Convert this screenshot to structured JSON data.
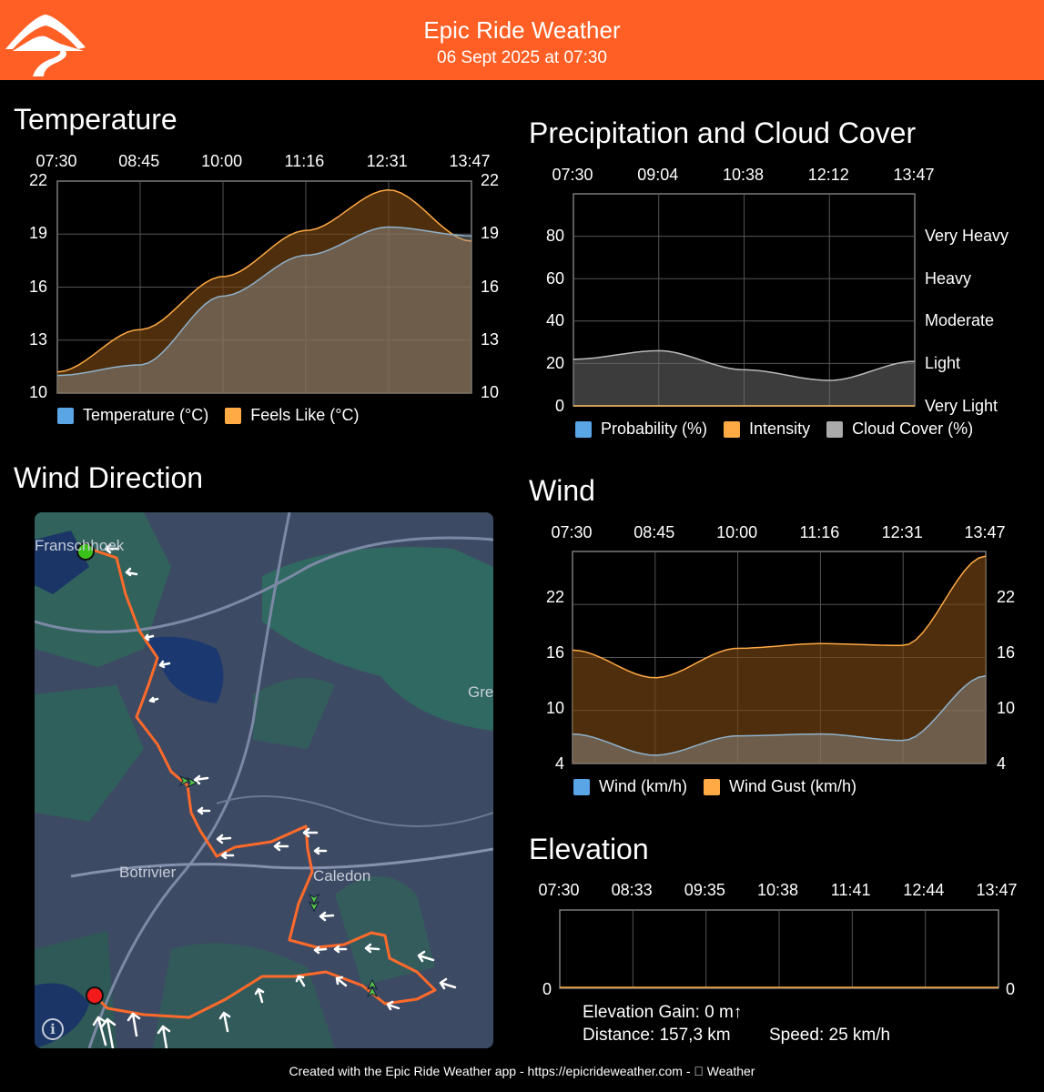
{
  "header": {
    "title": "Epic Ride Weather",
    "subtitle": "06 Sept 2025 at 07:30",
    "logo_icon": "mountain-road-logo-icon",
    "accent": "#ff5f24"
  },
  "temperature": {
    "title": "Temperature",
    "time_ticks": [
      "07:30",
      "08:45",
      "10:00",
      "11:16",
      "12:31",
      "13:47"
    ],
    "y_ticks": [
      "22",
      "19",
      "16",
      "13",
      "10"
    ],
    "legend": [
      {
        "label": "Temperature (°C)",
        "color": "#5aa5e6"
      },
      {
        "label": "Feels Like (°C)",
        "color": "#ffaa44"
      }
    ]
  },
  "precipitation": {
    "title": "Precipitation and Cloud Cover",
    "time_ticks": [
      "07:30",
      "09:04",
      "10:38",
      "12:12",
      "13:47"
    ],
    "y_ticks": [
      "80",
      "60",
      "40",
      "20",
      "0"
    ],
    "intensity_ticks": [
      "Very Heavy",
      "Heavy",
      "Moderate",
      "Light",
      "Very Light"
    ],
    "legend": [
      {
        "label": "Probability (%)",
        "color": "#5aa5e6"
      },
      {
        "label": "Intensity",
        "color": "#ffaa44"
      },
      {
        "label": "Cloud Cover (%)",
        "color": "#aaaaaa"
      }
    ]
  },
  "wind_direction": {
    "title": "Wind Direction",
    "map_labels": [
      "Franschhoek",
      "Gre",
      "Botrivier",
      "Caledon"
    ],
    "info_icon": "i"
  },
  "wind": {
    "title": "Wind",
    "time_ticks": [
      "07:30",
      "08:45",
      "10:00",
      "11:16",
      "12:31",
      "13:47"
    ],
    "y_ticks": [
      "22",
      "16",
      "10",
      "4"
    ],
    "legend": [
      {
        "label": "Wind (km/h)",
        "color": "#5aa5e6"
      },
      {
        "label": "Wind Gust (km/h)",
        "color": "#ffaa44"
      }
    ]
  },
  "elevation": {
    "title": "Elevation",
    "time_ticks": [
      "07:30",
      "08:33",
      "09:35",
      "10:38",
      "11:41",
      "12:44",
      "13:47"
    ],
    "y_tick": "0",
    "gain_label": "Elevation Gain: 0 m↑",
    "distance_label": "Distance: 157,3 km",
    "speed_label": "Speed: 25 km/h"
  },
  "footer": "Created with the Epic Ride Weather app - https://epicrideweather.com -  Weather",
  "chart_data": [
    {
      "type": "area",
      "title": "Temperature",
      "x": [
        "07:30",
        "08:45",
        "10:00",
        "11:16",
        "12:31",
        "13:47"
      ],
      "ylim": [
        10,
        22
      ],
      "series": [
        {
          "name": "Temperature (°C)",
          "values": [
            11.0,
            11.6,
            15.5,
            17.8,
            19.4,
            18.9
          ]
        },
        {
          "name": "Feels Like (°C)",
          "values": [
            11.2,
            13.6,
            16.6,
            19.2,
            21.5,
            18.6
          ]
        }
      ]
    },
    {
      "type": "area",
      "title": "Precipitation and Cloud Cover",
      "x": [
        "07:30",
        "09:04",
        "10:38",
        "12:12",
        "13:47"
      ],
      "ylim": [
        0,
        100
      ],
      "series": [
        {
          "name": "Probability (%)",
          "values": [
            0,
            0,
            0,
            0,
            0
          ]
        },
        {
          "name": "Intensity",
          "values": [
            0,
            0,
            0,
            0,
            0
          ]
        },
        {
          "name": "Cloud Cover (%)",
          "values": [
            22,
            26,
            17,
            12,
            21
          ]
        }
      ]
    },
    {
      "type": "area",
      "title": "Wind",
      "x": [
        "07:30",
        "08:45",
        "10:00",
        "11:16",
        "12:31",
        "13:47"
      ],
      "ylim": [
        4,
        27
      ],
      "series": [
        {
          "name": "Wind (km/h)",
          "values": [
            7.2,
            4.9,
            7.0,
            7.2,
            6.5,
            13.5
          ]
        },
        {
          "name": "Wind Gust (km/h)",
          "values": [
            16.3,
            13.3,
            16.5,
            17.0,
            16.8,
            26.5
          ]
        }
      ]
    },
    {
      "type": "line",
      "title": "Elevation",
      "x": [
        "07:30",
        "08:33",
        "09:35",
        "10:38",
        "11:41",
        "12:44",
        "13:47"
      ],
      "series": [
        {
          "name": "Elevation",
          "values": [
            0,
            0,
            0,
            0,
            0,
            0,
            0
          ]
        }
      ]
    }
  ]
}
